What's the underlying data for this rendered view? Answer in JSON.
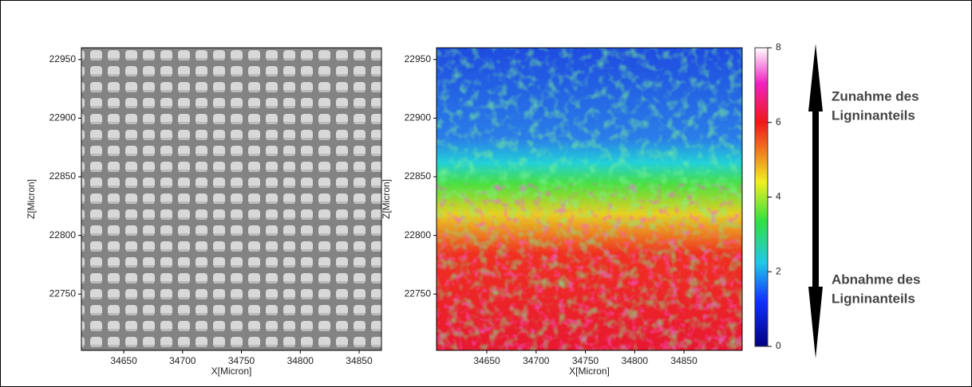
{
  "chart_data": [
    {
      "type": "image",
      "xlabel": "X[Micron]",
      "ylabel": "Z[Micron]",
      "xlim": [
        34614,
        34869
      ],
      "xticks": [
        34650,
        34700,
        34750,
        34800,
        34850
      ],
      "ylim": [
        22702,
        22960
      ],
      "yticks": [
        22750,
        22800,
        22850,
        22900,
        22950
      ]
    },
    {
      "type": "heatmap",
      "xlabel": "X[Micron]",
      "ylabel": "Z[Micron]",
      "xlim": [
        34599,
        34909
      ],
      "xticks": [
        34650,
        34700,
        34750,
        34800,
        34850
      ],
      "ylim": [
        22702,
        22960
      ],
      "yticks": [
        22750,
        22800,
        22850,
        22900,
        22950
      ],
      "zlim": [
        0,
        8
      ],
      "zticks": [
        0,
        2,
        4,
        6,
        8
      ]
    }
  ],
  "annotations": [
    "Zunahme des",
    "Ligninanteils",
    "Abnahme des",
    "Ligninanteils"
  ]
}
